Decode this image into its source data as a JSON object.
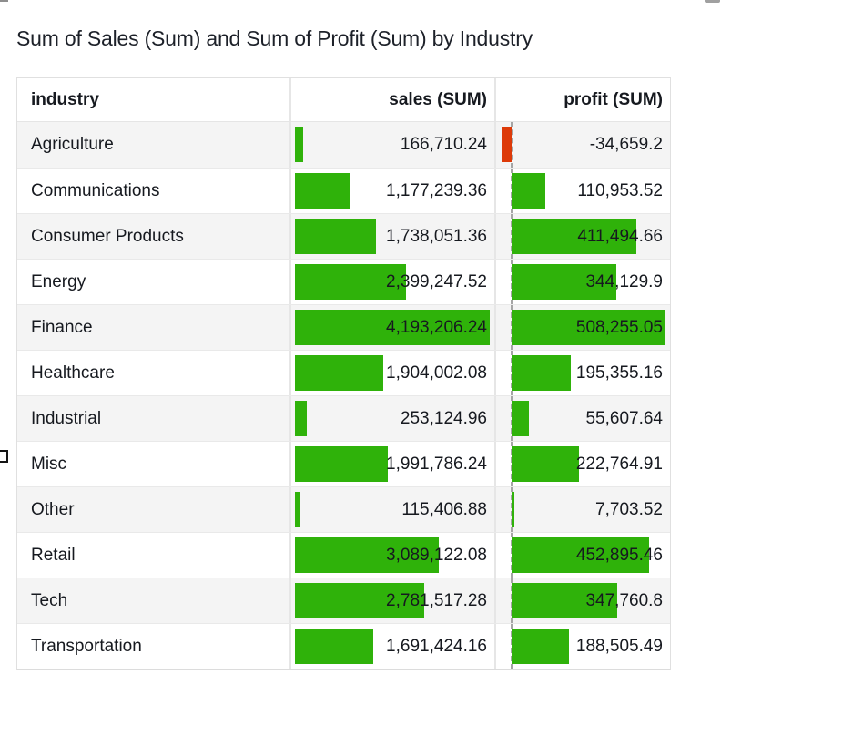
{
  "widget": {
    "title": "Sum of Sales (Sum) and Sum of Profit (Sum) by Industry"
  },
  "chart_data": {
    "type": "table",
    "title": "Sum of Sales (Sum) and Sum of Profit (Sum) by Industry",
    "columns": [
      "industry",
      "sales (SUM)",
      "profit (SUM)"
    ],
    "rows": [
      {
        "industry": "Agriculture",
        "sales": 166710.24,
        "sales_label": "166,710.24",
        "profit": -34659.2,
        "profit_label": "-34,659.2"
      },
      {
        "industry": "Communications",
        "sales": 1177239.36,
        "sales_label": "1,177,239.36",
        "profit": 110953.52,
        "profit_label": "110,953.52"
      },
      {
        "industry": "Consumer Products",
        "sales": 1738051.36,
        "sales_label": "1,738,051.36",
        "profit": 411494.66,
        "profit_label": "411,494.66"
      },
      {
        "industry": "Energy",
        "sales": 2399247.52,
        "sales_label": "2,399,247.52",
        "profit": 344129.9,
        "profit_label": "344,129.9"
      },
      {
        "industry": "Finance",
        "sales": 4193206.24,
        "sales_label": "4,193,206.24",
        "profit": 508255.05,
        "profit_label": "508,255.05"
      },
      {
        "industry": "Healthcare",
        "sales": 1904002.08,
        "sales_label": "1,904,002.08",
        "profit": 195355.16,
        "profit_label": "195,355.16"
      },
      {
        "industry": "Industrial",
        "sales": 253124.96,
        "sales_label": "253,124.96",
        "profit": 55607.64,
        "profit_label": "55,607.64"
      },
      {
        "industry": "Misc",
        "sales": 1991786.24,
        "sales_label": "1,991,786.24",
        "profit": 222764.91,
        "profit_label": "222,764.91"
      },
      {
        "industry": "Other",
        "sales": 115406.88,
        "sales_label": "115,406.88",
        "profit": 7703.52,
        "profit_label": "7,703.52"
      },
      {
        "industry": "Retail",
        "sales": 3089122.08,
        "sales_label": "3,089,122.08",
        "profit": 452895.46,
        "profit_label": "452,895.46"
      },
      {
        "industry": "Tech",
        "sales": 2781517.28,
        "sales_label": "2,781,517.28",
        "profit": 347760.8,
        "profit_label": "347,760.8"
      },
      {
        "industry": "Transportation",
        "sales": 1691424.16,
        "sales_label": "1,691,424.16",
        "profit": 188505.49,
        "profit_label": "188,505.49"
      }
    ],
    "axis": {
      "sales_min": 0,
      "sales_max": 4193206.24,
      "profit_min": -34659.2,
      "profit_max": 508255.05
    },
    "bar_colors": {
      "positive": "#2fb20a",
      "negative": "#dd3a09"
    },
    "layout_hints": {
      "stripe_color": "#f4f4f4",
      "zero_baseline": "dashed gray line in profit column",
      "bars": "in-cell data bars, left-anchored for sales, zero-anchored for profit"
    }
  }
}
